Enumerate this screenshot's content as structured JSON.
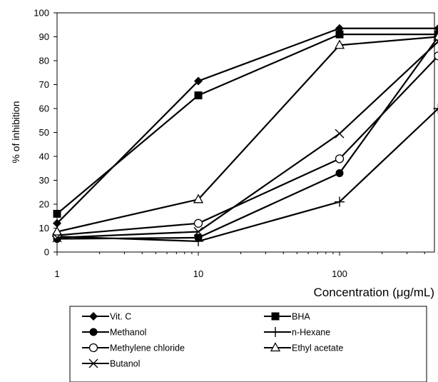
{
  "chart_data": {
    "type": "line",
    "x_scale": "log",
    "xlabel": "Concentration (μg/mL)",
    "ylabel": "% of inhibition",
    "xlim": [
      1,
      500
    ],
    "ylim": [
      0,
      100
    ],
    "x_ticks": [
      1,
      10,
      100
    ],
    "y_ticks": [
      0,
      10,
      20,
      30,
      40,
      50,
      60,
      70,
      80,
      90,
      100
    ],
    "x": [
      1,
      10,
      100,
      500
    ],
    "grid": false,
    "legend_position": "bottom",
    "series": [
      {
        "name": "Vit. C",
        "marker": "diamond",
        "values": [
          12,
          71.5,
          93.5,
          93.5
        ]
      },
      {
        "name": "BHA",
        "marker": "square",
        "values": [
          16,
          65.5,
          91,
          91
        ]
      },
      {
        "name": "Methanol",
        "marker": "circle",
        "values": [
          5.5,
          6,
          33,
          90
        ]
      },
      {
        "name": "n-Hexane",
        "marker": "plus",
        "values": [
          6.5,
          4.5,
          21,
          60
        ]
      },
      {
        "name": "Methylene chloride",
        "marker": "open-circle",
        "values": [
          7,
          12,
          39,
          82
        ]
      },
      {
        "name": "Ethyl acetate",
        "marker": "open-triangle",
        "values": [
          8.5,
          22,
          86.5,
          90
        ]
      },
      {
        "name": "Butanol",
        "marker": "x",
        "values": [
          6,
          8.5,
          49.5,
          88
        ]
      }
    ]
  }
}
